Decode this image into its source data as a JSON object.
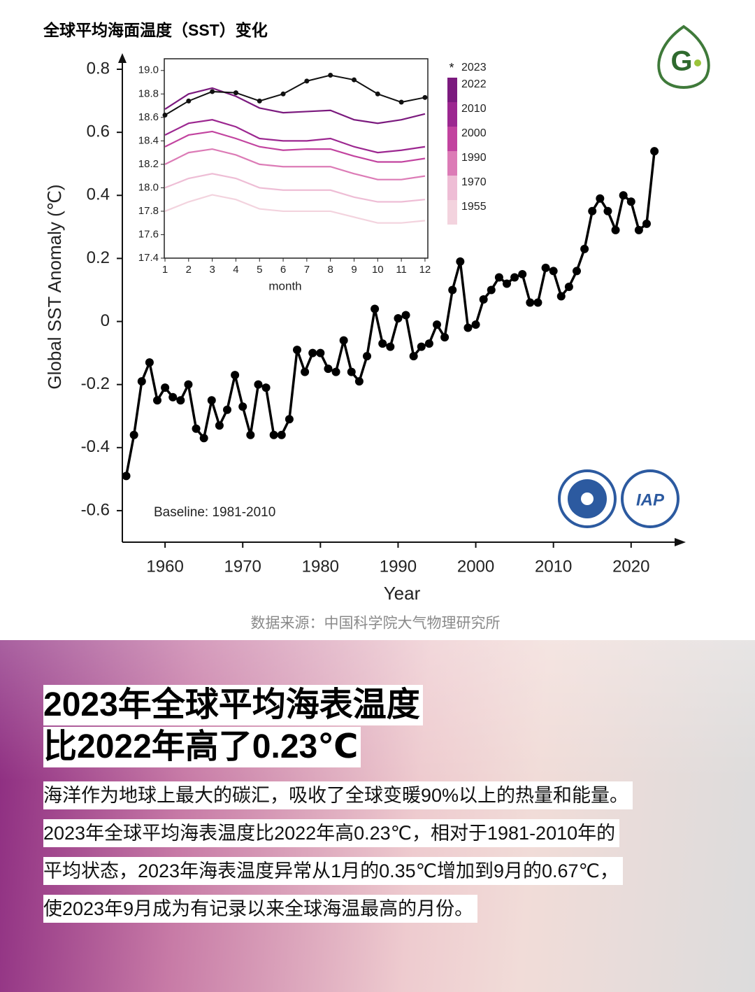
{
  "title": "全球平均海面温度（SST）变化",
  "chart_data": [
    {
      "type": "line",
      "color": "#000000",
      "x": [
        1955,
        1956,
        1957,
        1958,
        1959,
        1960,
        1961,
        1962,
        1963,
        1964,
        1965,
        1966,
        1967,
        1968,
        1969,
        1970,
        1971,
        1972,
        1973,
        1974,
        1975,
        1976,
        1977,
        1978,
        1979,
        1980,
        1981,
        1982,
        1983,
        1984,
        1985,
        1986,
        1987,
        1988,
        1989,
        1990,
        1991,
        1992,
        1993,
        1994,
        1995,
        1996,
        1997,
        1998,
        1999,
        2000,
        2001,
        2002,
        2003,
        2004,
        2005,
        2006,
        2007,
        2008,
        2009,
        2010,
        2011,
        2012,
        2013,
        2014,
        2015,
        2016,
        2017,
        2018,
        2019,
        2020,
        2021,
        2022,
        2023
      ],
      "values": [
        -0.49,
        -0.36,
        -0.19,
        -0.13,
        -0.25,
        -0.21,
        -0.24,
        -0.25,
        -0.2,
        -0.34,
        -0.37,
        -0.25,
        -0.33,
        -0.28,
        -0.17,
        -0.27,
        -0.36,
        -0.2,
        -0.21,
        -0.36,
        -0.36,
        -0.31,
        -0.09,
        -0.16,
        -0.1,
        -0.1,
        -0.15,
        -0.16,
        -0.06,
        -0.16,
        -0.19,
        -0.11,
        0.04,
        -0.07,
        -0.08,
        0.01,
        0.02,
        -0.11,
        -0.08,
        -0.07,
        -0.01,
        -0.05,
        0.1,
        0.19,
        -0.02,
        -0.01,
        0.07,
        0.1,
        0.14,
        0.12,
        0.14,
        0.15,
        0.06,
        0.06,
        0.17,
        0.16,
        0.08,
        0.11,
        0.16,
        0.23,
        0.35,
        0.39,
        0.35,
        0.29,
        0.4,
        0.38,
        0.29,
        0.31,
        0.54
      ],
      "xlim": [
        1954.5,
        2026.5
      ],
      "xticks": [
        1960,
        1970,
        1980,
        1990,
        2000,
        2010,
        2020
      ],
      "ylim": [
        -0.7,
        0.82
      ],
      "yticks": [
        -0.6,
        -0.4,
        -0.2,
        0,
        0.2,
        0.4,
        0.6,
        0.8
      ],
      "x_label": "Year",
      "y_label": "Global SST Anomaly (℃)",
      "annotation": "Baseline: 1981-2010"
    },
    {
      "type": "line",
      "x": [
        1,
        2,
        3,
        4,
        5,
        6,
        7,
        8,
        9,
        10,
        11,
        12
      ],
      "xlim": [
        1,
        12.15
      ],
      "xticks": [
        1,
        2,
        3,
        4,
        5,
        6,
        7,
        8,
        9,
        10,
        11,
        12
      ],
      "ylim": [
        17.4,
        19.1
      ],
      "yticks": [
        17.4,
        17.6,
        17.8,
        {
          "value": 18,
          "label": "18.0"
        },
        18.2,
        18.4,
        18.6,
        18.8,
        {
          "value": 19,
          "label": "19.0"
        }
      ],
      "x_label": "month",
      "series": [
        {
          "name": "2023",
          "color": "#111111",
          "values": [
            18.62,
            18.74,
            18.82,
            18.81,
            18.74,
            18.8,
            18.91,
            18.96,
            18.92,
            18.8,
            18.73,
            18.77
          ]
        },
        {
          "name": "2022",
          "color": "#7b1a7e",
          "values": [
            18.67,
            18.8,
            18.85,
            18.78,
            18.68,
            18.64,
            18.65,
            18.66,
            18.58,
            18.55,
            18.58,
            18.63
          ]
        },
        {
          "name": "2010",
          "color": "#9c2790",
          "values": [
            18.45,
            18.55,
            18.58,
            18.52,
            18.42,
            18.4,
            18.4,
            18.42,
            18.35,
            18.3,
            18.32,
            18.35
          ]
        },
        {
          "name": "2000",
          "color": "#c2439f",
          "values": [
            18.35,
            18.45,
            18.48,
            18.42,
            18.35,
            18.32,
            18.33,
            18.33,
            18.27,
            18.22,
            18.22,
            18.25
          ]
        },
        {
          "name": "1990",
          "color": "#dc7bb6",
          "values": [
            18.2,
            18.3,
            18.33,
            18.28,
            18.2,
            18.18,
            18.18,
            18.18,
            18.12,
            18.07,
            18.07,
            18.1
          ]
        },
        {
          "name": "1970",
          "color": "#eebdd5",
          "values": [
            18,
            18.08,
            18.12,
            18.08,
            18,
            17.98,
            17.98,
            17.98,
            17.92,
            17.88,
            17.88,
            17.9
          ]
        },
        {
          "name": "1955",
          "color": "#f3d3de",
          "values": [
            17.8,
            17.88,
            17.94,
            17.9,
            17.82,
            17.8,
            17.8,
            17.8,
            17.75,
            17.7,
            17.7,
            17.72
          ]
        }
      ]
    }
  ],
  "source": "数据来源：中国科学院大气物理研究所",
  "headline": [
    "2023年全球平均海表温度",
    "比2022年高了0.23℃"
  ],
  "body": [
    "海洋作为地球上最大的碳汇，吸收了全球变暖90%以上的热量和能量。",
    "2023年全球平均海表温度比2022年高0.23℃，相对于1981-2010年的",
    "平均状态，2023年海表温度异常从1月的0.35℃增加到9月的0.67℃，",
    "使2023年9月成为有记录以来全球海温最高的月份。"
  ],
  "logos": {
    "g": "G",
    "iap": "IAP"
  }
}
